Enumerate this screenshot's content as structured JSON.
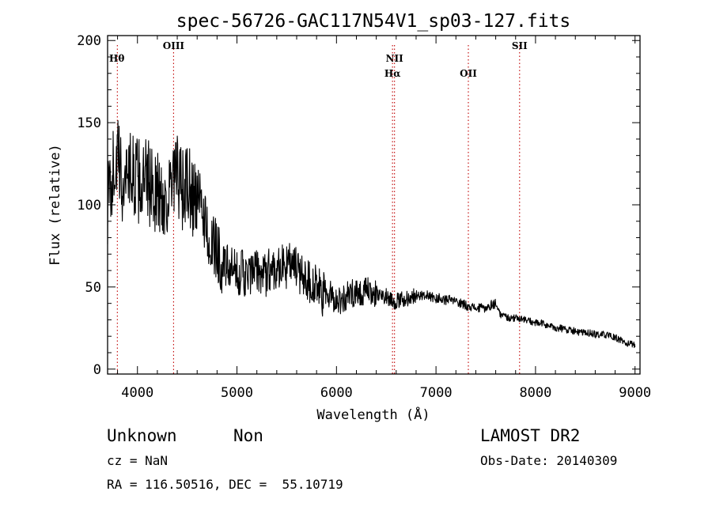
{
  "chart_data": {
    "type": "line",
    "title": "spec-56726-GAC117N54V1_sp03-127.fits",
    "xlabel": "Wavelength (Å)",
    "ylabel": "Flux (relative)",
    "xlim": [
      3700,
      9050
    ],
    "ylim": [
      -3,
      203
    ],
    "x_ticks": [
      4000,
      5000,
      6000,
      7000,
      8000,
      9000
    ],
    "y_ticks": [
      0,
      50,
      100,
      150,
      200
    ],
    "grid": false,
    "line_color": "#000000",
    "marker_color": "#c00000",
    "spectral_lines": [
      {
        "label": "Hθ",
        "x": 3798,
        "row": 0
      },
      {
        "label": "OIII",
        "x": 4363,
        "row": -1
      },
      {
        "label": "NII",
        "x": 6583,
        "row": 0
      },
      {
        "label": "Hα",
        "x": 6563,
        "row": 1
      },
      {
        "label": "OII",
        "x": 7325,
        "row": 1
      },
      {
        "label": "SII",
        "x": 7840,
        "row": -1
      }
    ],
    "series": [
      {
        "x": [
          3700,
          3750,
          3800,
          3850,
          3900,
          3950,
          4000,
          4050,
          4100,
          4150,
          4200,
          4250,
          4300,
          4350,
          4400,
          4450,
          4500,
          4550,
          4600,
          4650,
          4700,
          4750,
          4800,
          4850,
          4900,
          4950,
          5000,
          5050,
          5100,
          5150,
          5200,
          5250,
          5300,
          5350,
          5400,
          5450,
          5500,
          5550,
          5600,
          5650,
          5700,
          5750,
          5800,
          5850,
          5900,
          5950,
          6000,
          6050,
          6100,
          6150,
          6200,
          6250,
          6300,
          6350,
          6400,
          6450,
          6500,
          6550,
          6600,
          6650,
          6700,
          6750,
          6800,
          6850,
          6900,
          6950,
          7000,
          7050,
          7100,
          7150,
          7200,
          7250,
          7300,
          7350,
          7400,
          7450,
          7500,
          7550,
          7600,
          7650,
          7700,
          7750,
          7800,
          7850,
          7900,
          7950,
          8000,
          8050,
          8100,
          8150,
          8200,
          8250,
          8300,
          8350,
          8400,
          8450,
          8500,
          8550,
          8600,
          8650,
          8700,
          8750,
          8800,
          8850,
          8900,
          8950,
          9000
        ],
        "values": [
          100,
          120,
          130,
          110,
          125,
          118,
          115,
          112,
          115,
          110,
          108,
          102,
          105,
          110,
          118,
          108,
          112,
          105,
          103,
          98,
          85,
          72,
          75,
          62,
          62,
          60,
          58,
          60,
          55,
          58,
          60,
          58,
          58,
          62,
          62,
          63,
          62,
          65,
          60,
          58,
          56,
          52,
          50,
          45,
          45,
          45,
          42,
          42,
          44,
          46,
          48,
          46,
          47,
          47,
          46,
          44,
          45,
          42,
          41,
          42,
          43,
          44,
          45,
          45,
          45,
          44,
          43,
          43,
          42,
          42,
          41,
          40,
          39,
          38,
          37,
          37,
          37,
          39,
          40,
          33,
          32,
          31,
          31,
          31,
          30,
          29,
          28,
          28,
          27,
          26,
          25,
          25,
          24,
          24,
          23,
          22,
          22,
          22,
          21,
          21,
          21,
          20,
          19,
          18,
          16,
          15,
          15
        ]
      }
    ]
  },
  "footer": {
    "class_label": "Unknown",
    "subclass_label": "Non",
    "survey": "LAMOST DR2",
    "cz": "cz = NaN",
    "obs_date": "Obs-Date: 20140309",
    "coords": "RA = 116.50516, DEC =  55.10719"
  }
}
